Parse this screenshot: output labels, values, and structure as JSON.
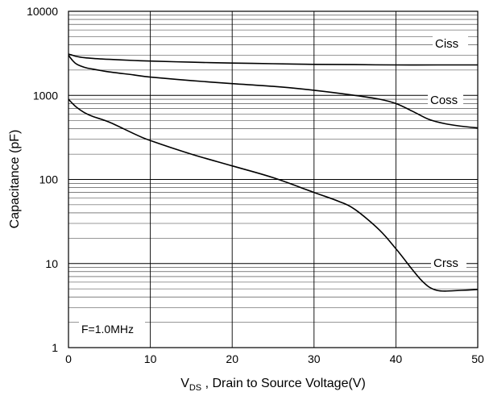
{
  "chart_data": {
    "type": "line",
    "title": "",
    "xlabel_main": "V",
    "xlabel_sub": "DS",
    "xlabel_rest": " , Drain to Source Voltage(V)",
    "ylabel": "Capacitance (pF)",
    "xlim": [
      0,
      50
    ],
    "ylim": [
      1,
      10000
    ],
    "yscale": "log",
    "grid": true,
    "x_ticks": [
      "0",
      "10",
      "20",
      "30",
      "40",
      "50"
    ],
    "y_ticks": [
      "1",
      "10",
      "100",
      "1000",
      "10000"
    ],
    "annotation": "F=1.0MHz",
    "series": [
      {
        "name": "Ciss",
        "x": [
          0,
          0.5,
          1,
          2,
          3,
          5,
          8,
          10,
          15,
          20,
          25,
          30,
          35,
          40,
          45,
          50
        ],
        "y": [
          3100,
          3000,
          2900,
          2800,
          2750,
          2680,
          2600,
          2560,
          2480,
          2420,
          2380,
          2340,
          2320,
          2300,
          2300,
          2300
        ]
      },
      {
        "name": "Coss",
        "x": [
          0,
          0.5,
          1,
          2,
          3,
          5,
          8,
          10,
          15,
          20,
          25,
          30,
          35,
          38,
          40,
          42,
          44,
          46,
          48,
          50
        ],
        "y": [
          3000,
          2600,
          2350,
          2150,
          2050,
          1900,
          1750,
          1650,
          1500,
          1380,
          1280,
          1150,
          1000,
          900,
          800,
          650,
          520,
          460,
          430,
          410
        ]
      },
      {
        "name": "Crss",
        "x": [
          0,
          0.5,
          1,
          2,
          3,
          5,
          8,
          10,
          15,
          20,
          25,
          30,
          33,
          35,
          38,
          40,
          42,
          43,
          44,
          45,
          46,
          48,
          50
        ],
        "y": [
          900,
          800,
          720,
          620,
          560,
          480,
          350,
          290,
          200,
          145,
          105,
          70,
          55,
          44,
          25,
          15,
          8.5,
          6.5,
          5.3,
          4.8,
          4.7,
          4.8,
          4.9
        ]
      }
    ]
  }
}
